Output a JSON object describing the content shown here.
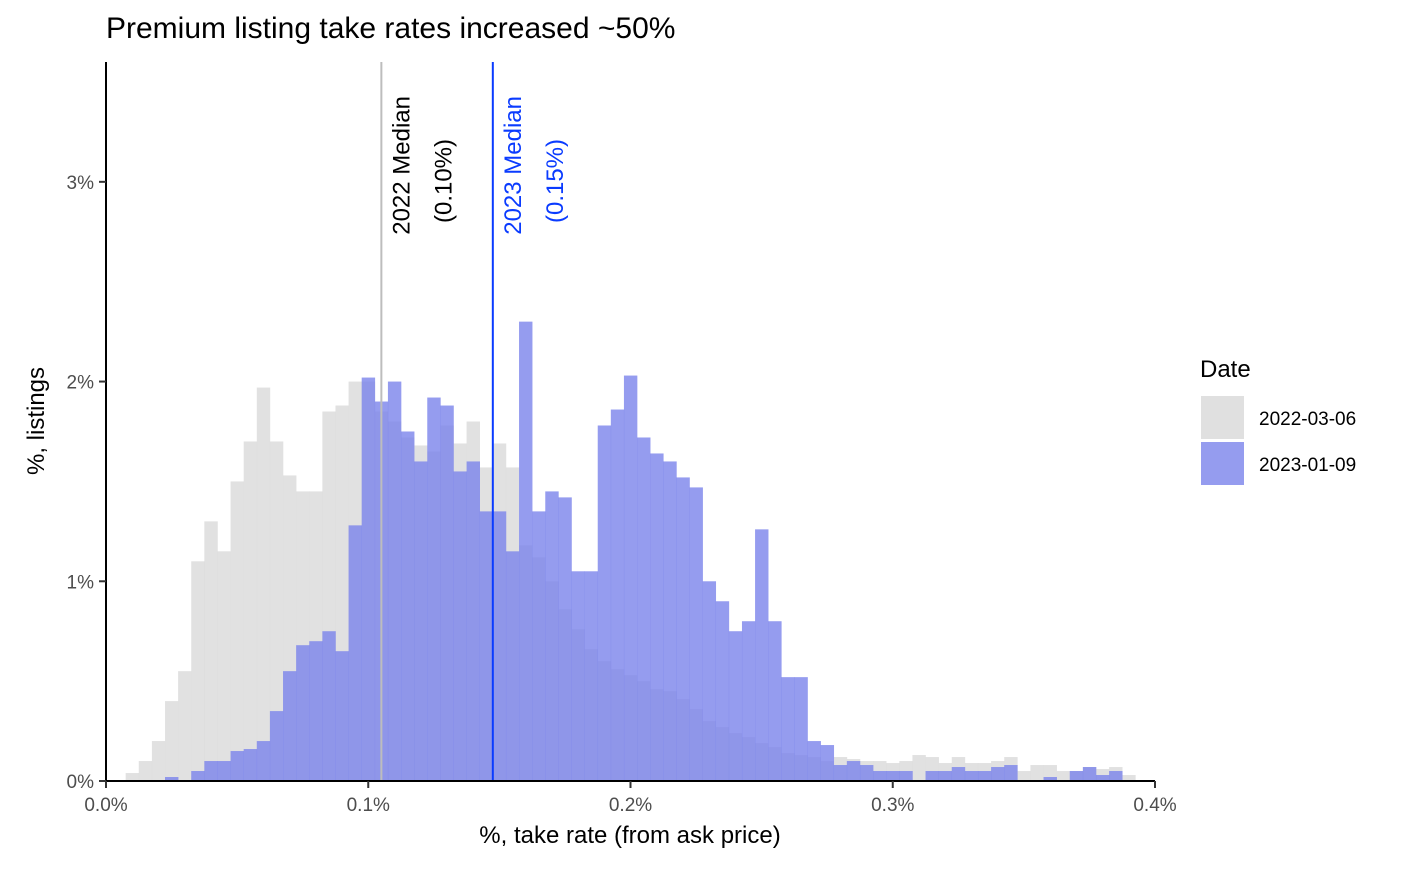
{
  "chart_data": {
    "type": "histogram",
    "title": "Premium listing take rates increased ~50%",
    "xlabel": "%, take rate (from ask price)",
    "ylabel": "%, listings",
    "x_range": [
      0.0,
      0.4
    ],
    "y_range": [
      0,
      3.6
    ],
    "bin_width": 0.005,
    "bin_start": 0.0075,
    "x_ticks": [
      0.0,
      0.1,
      0.2,
      0.3,
      0.4
    ],
    "x_tick_labels": [
      "0.0%",
      "0.1%",
      "0.2%",
      "0.3%",
      "0.4%"
    ],
    "y_ticks": [
      0,
      1,
      2,
      3
    ],
    "y_tick_labels": [
      "0%",
      "1%",
      "2%",
      "3%"
    ],
    "grid": false,
    "legend": {
      "title": "Date",
      "position": "right",
      "entries": [
        {
          "label": "2022-03-06",
          "color": "#E0E0E0"
        },
        {
          "label": "2023-01-09",
          "color": "#7B83EB"
        }
      ]
    },
    "series": [
      {
        "name": "2022-03-06",
        "color": "#D9D9D9",
        "opacity": 0.8,
        "values": [
          0.04,
          0.1,
          0.2,
          0.4,
          0.55,
          1.1,
          1.3,
          1.15,
          1.5,
          1.7,
          1.97,
          1.7,
          1.53,
          1.45,
          1.45,
          1.85,
          1.88,
          2.0,
          2.0,
          1.85,
          1.8,
          1.72,
          1.68,
          1.65,
          1.78,
          1.69,
          1.8,
          1.57,
          1.69,
          1.57,
          1.18,
          1.12,
          1.0,
          0.86,
          0.76,
          0.66,
          0.6,
          0.56,
          0.53,
          0.5,
          0.46,
          0.45,
          0.41,
          0.36,
          0.3,
          0.27,
          0.24,
          0.22,
          0.19,
          0.17,
          0.14,
          0.13,
          0.12,
          0.1,
          0.12,
          0.11,
          0.1,
          0.1,
          0.09,
          0.1,
          0.13,
          0.12,
          0.09,
          0.12,
          0.09,
          0.09,
          0.1,
          0.12,
          0.05,
          0.08,
          0.08,
          0.05,
          0.05,
          0.07,
          0.06,
          0.07,
          0.03
        ]
      },
      {
        "name": "2023-01-09",
        "color": "#7B83EB",
        "opacity": 0.8,
        "values": [
          0.0,
          0.0,
          0.0,
          0.02,
          0.0,
          0.05,
          0.1,
          0.1,
          0.15,
          0.16,
          0.2,
          0.35,
          0.55,
          0.68,
          0.7,
          0.75,
          0.65,
          1.28,
          2.02,
          1.9,
          2.0,
          1.75,
          1.6,
          1.92,
          1.88,
          1.55,
          1.6,
          1.35,
          1.35,
          1.15,
          2.3,
          1.35,
          1.45,
          1.42,
          1.05,
          1.05,
          1.78,
          1.86,
          2.03,
          1.72,
          1.64,
          1.6,
          1.52,
          1.47,
          1.0,
          0.9,
          0.75,
          0.8,
          1.26,
          0.8,
          0.52,
          0.52,
          0.2,
          0.18,
          0.08,
          0.1,
          0.08,
          0.05,
          0.05,
          0.05,
          0.0,
          0.05,
          0.05,
          0.07,
          0.05,
          0.05,
          0.07,
          0.08,
          0.0,
          0.0,
          0.02,
          0.0,
          0.05,
          0.07,
          0.03,
          0.05,
          0.0
        ]
      }
    ],
    "annotations": [
      {
        "line_x": 0.105,
        "color": "#BDBDBD",
        "label_line1": "2022 Median",
        "label_line2": "(0.10%)",
        "text_color": "#000000"
      },
      {
        "line_x": 0.1475,
        "color": "#0A3BFF",
        "label_line1": "2023 Median",
        "label_line2": "(0.15%)",
        "text_color": "#0A3BFF"
      }
    ]
  }
}
